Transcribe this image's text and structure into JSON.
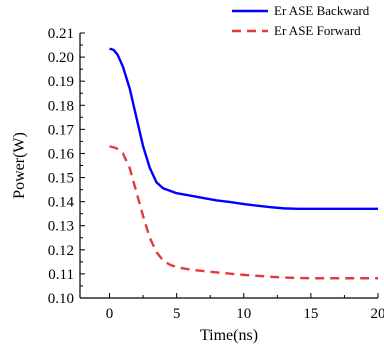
{
  "chart_data": {
    "type": "line",
    "title": "",
    "xlabel": "Time(ns)",
    "ylabel": "Power(W)",
    "xlim": [
      -2.2,
      20
    ],
    "ylim": [
      0.1,
      0.21
    ],
    "xticks": [
      0,
      5,
      10,
      15,
      20
    ],
    "yticks": [
      0.1,
      0.11,
      0.12,
      0.13,
      0.14,
      0.15,
      0.16,
      0.17,
      0.18,
      0.19,
      0.2,
      0.21
    ],
    "grid": false,
    "legend_position": "top-right",
    "series": [
      {
        "name": "Er ASE Backward",
        "color": "#0000ff",
        "style": "solid",
        "x": [
          0,
          0.3,
          0.6,
          1.0,
          1.5,
          2.0,
          2.5,
          3.0,
          3.5,
          4.0,
          4.5,
          5.0,
          6,
          7,
          8,
          9,
          10,
          11,
          12,
          13,
          14,
          15,
          16,
          17,
          18,
          19,
          20
        ],
        "y": [
          0.2035,
          0.203,
          0.201,
          0.196,
          0.187,
          0.175,
          0.163,
          0.154,
          0.148,
          0.1455,
          0.1445,
          0.1435,
          0.1425,
          0.1415,
          0.1405,
          0.1398,
          0.139,
          0.1383,
          0.1377,
          0.1372,
          0.137,
          0.137,
          0.137,
          0.137,
          0.137,
          0.137,
          0.137
        ]
      },
      {
        "name": "Er ASE Forward",
        "color": "#e8383d",
        "style": "dashed",
        "x": [
          0,
          0.5,
          1.0,
          1.5,
          2.0,
          2.5,
          3.0,
          3.5,
          4.0,
          4.5,
          5.0,
          6,
          7,
          8,
          9,
          10,
          11,
          12,
          13,
          14,
          15,
          16,
          17,
          18,
          19,
          20
        ],
        "y": [
          0.163,
          0.1622,
          0.16,
          0.154,
          0.144,
          0.134,
          0.125,
          0.119,
          0.1155,
          0.1138,
          0.1128,
          0.1118,
          0.1112,
          0.1106,
          0.1101,
          0.1096,
          0.1092,
          0.1088,
          0.1085,
          0.1083,
          0.1082,
          0.1082,
          0.1082,
          0.1082,
          0.1082,
          0.1082
        ]
      }
    ]
  }
}
